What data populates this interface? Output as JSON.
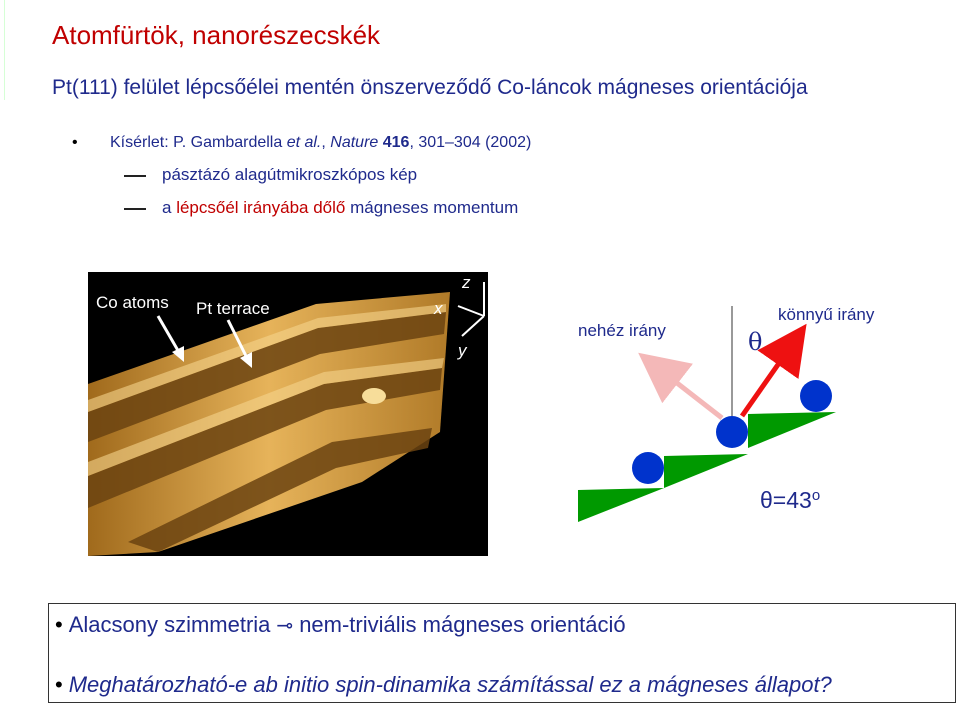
{
  "title": "Atomfürtök, nanorészecskék",
  "subtitle": "Pt(111) felület lépcsőélei mentén önszerveződő Co-láncok mágneses orientációja",
  "reference": {
    "prefix": "Kísérlet: ",
    "author": "P. Gambardella ",
    "etal": "et al.",
    "comma": ", ",
    "journal": "Nature",
    "volume": " 416",
    "pages": ", 301–304 (2002)"
  },
  "dash_items": {
    "first": "pásztázó alagútmikroszkópos kép",
    "second_prefix": "a ",
    "second_highlight": "lépcsőél irányába dőlő",
    "second_suffix": " mágneses momentum"
  },
  "stm_image": {
    "label_co": "Co atoms",
    "label_pt": "Pt terrace",
    "axis_x": "x",
    "axis_y": "y",
    "axis_z": "z"
  },
  "diagram": {
    "hard_label": "nehéz irány",
    "easy_label": "könnyű irány",
    "theta": "θ",
    "angle_text": "θ=43",
    "angle_unit": "o",
    "colors": {
      "step": "#009900",
      "atom": "#0033cc",
      "easy_arrow": "#ee1111",
      "hard_arrow": "#f4b8b8"
    }
  },
  "box": {
    "line1_a": "Alacsony szimmetria",
    "line1_arrow": "⊸",
    "line1_b": "nem-triviális mágneses orientáció",
    "line2": "Meghatározható-e ab initio spin-dinamika számítással ez a mágneses állapot?"
  }
}
